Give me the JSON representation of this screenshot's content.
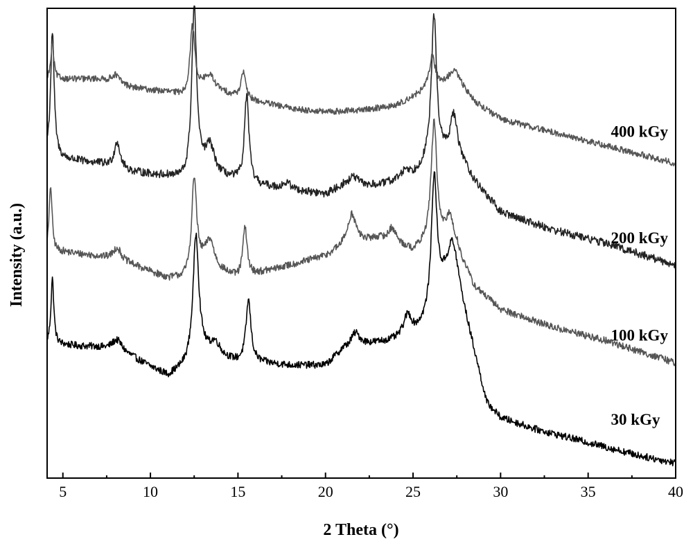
{
  "chart_data": {
    "type": "line",
    "title": "",
    "xlabel": "2 Theta (°)",
    "ylabel": "Intensity (a.u.)",
    "xlim": [
      4.1,
      40
    ],
    "ylim": [
      0,
      5.3
    ],
    "xticks": [
      5,
      10,
      15,
      20,
      25,
      30,
      35,
      40
    ],
    "xtick_labels": [
      "5",
      "10",
      "15",
      "20",
      "25",
      "30",
      "35",
      "40"
    ],
    "y_tick_labels_shown": false,
    "grid": false,
    "series": [
      {
        "name": "30 kGy",
        "color": "#000000",
        "offset": 0.05,
        "label_x": 36.3,
        "label_y": 0.6,
        "baseline": [
          [
            4.1,
            1.45
          ],
          [
            5,
            1.45
          ],
          [
            7,
            1.42
          ],
          [
            9,
            1.3
          ],
          [
            10,
            1.2
          ],
          [
            11,
            1.1
          ],
          [
            12,
            1.2
          ],
          [
            13,
            1.35
          ],
          [
            15,
            1.25
          ],
          [
            16,
            1.25
          ],
          [
            18,
            1.22
          ],
          [
            20,
            1.22
          ],
          [
            21,
            1.4
          ],
          [
            22,
            1.45
          ],
          [
            24,
            1.5
          ],
          [
            25,
            1.55
          ],
          [
            26,
            1.75
          ],
          [
            27.2,
            2.5
          ],
          [
            28,
            1.8
          ],
          [
            28.6,
            1.3
          ],
          [
            29.2,
            0.8
          ],
          [
            30,
            0.63
          ],
          [
            32,
            0.5
          ],
          [
            35,
            0.35
          ],
          [
            38,
            0.2
          ],
          [
            40,
            0.12
          ]
        ],
        "peaks": [
          [
            4.4,
            0.75,
            0.1
          ],
          [
            8.1,
            0.15,
            0.4
          ],
          [
            12.6,
            1.4,
            0.2
          ],
          [
            13.7,
            0.15,
            0.35
          ],
          [
            15.6,
            0.7,
            0.17
          ],
          [
            21.7,
            0.15,
            0.3
          ],
          [
            24.7,
            0.25,
            0.3
          ],
          [
            26.2,
            1.5,
            0.2
          ],
          [
            27.4,
            0.15,
            0.25
          ]
        ],
        "noise": 0.04
      },
      {
        "name": "100 kGy",
        "color": "#555555",
        "offset": 1.15,
        "label_x": 36.3,
        "label_y": 1.55,
        "baseline": [
          [
            4.1,
            1.4
          ],
          [
            5,
            1.4
          ],
          [
            7,
            1.35
          ],
          [
            9,
            1.25
          ],
          [
            11,
            1.1
          ],
          [
            12,
            1.1
          ],
          [
            13,
            1.25
          ],
          [
            15,
            1.1
          ],
          [
            16,
            1.15
          ],
          [
            18,
            1.25
          ],
          [
            20,
            1.35
          ],
          [
            21,
            1.45
          ],
          [
            23,
            1.55
          ],
          [
            24,
            1.5
          ],
          [
            25,
            1.4
          ],
          [
            26,
            1.5
          ],
          [
            27.5,
            1.4
          ],
          [
            28.5,
            1.0
          ],
          [
            30,
            0.75
          ],
          [
            33,
            0.55
          ],
          [
            36,
            0.4
          ],
          [
            40,
            0.15
          ]
        ],
        "peaks": [
          [
            4.3,
            0.75,
            0.1
          ],
          [
            8.1,
            0.15,
            0.3
          ],
          [
            12.5,
            1.05,
            0.17
          ],
          [
            13.4,
            0.3,
            0.3
          ],
          [
            15.4,
            0.55,
            0.15
          ],
          [
            21.5,
            0.35,
            0.3
          ],
          [
            23.8,
            0.15,
            0.25
          ],
          [
            26.2,
            1.35,
            0.2
          ],
          [
            27.1,
            0.35,
            0.3
          ]
        ],
        "noise": 0.04
      },
      {
        "name": "200 kGy",
        "color": "#222222",
        "offset": 2.4,
        "label_x": 36.3,
        "label_y": 2.65,
        "baseline": [
          [
            4.1,
            1.25
          ],
          [
            5,
            1.2
          ],
          [
            7,
            1.15
          ],
          [
            9,
            1.05
          ],
          [
            11,
            1.0
          ],
          [
            12,
            0.95
          ],
          [
            13,
            1.05
          ],
          [
            15,
            0.95
          ],
          [
            16,
            0.9
          ],
          [
            18,
            0.85
          ],
          [
            20,
            0.8
          ],
          [
            21,
            0.9
          ],
          [
            23,
            0.9
          ],
          [
            25,
            1.0
          ],
          [
            26,
            1.2
          ],
          [
            27.5,
            1.3
          ],
          [
            28.5,
            0.95
          ],
          [
            30,
            0.6
          ],
          [
            33,
            0.4
          ],
          [
            36,
            0.25
          ],
          [
            40,
            0.0
          ]
        ],
        "peaks": [
          [
            4.4,
            1.4,
            0.12
          ],
          [
            8.1,
            0.3,
            0.2
          ],
          [
            12.5,
            1.9,
            0.17
          ],
          [
            13.4,
            0.3,
            0.3
          ],
          [
            15.5,
            1.0,
            0.15
          ],
          [
            17.8,
            0.07,
            0.3
          ],
          [
            21.6,
            0.1,
            0.3
          ],
          [
            24.6,
            0.1,
            0.3
          ],
          [
            26.2,
            1.6,
            0.18
          ],
          [
            27.3,
            0.4,
            0.2
          ]
        ],
        "noise": 0.045
      },
      {
        "name": "400 kGy",
        "color": "#555555",
        "offset": 3.55,
        "label_x": 36.3,
        "label_y": 3.85,
        "baseline": [
          [
            4.1,
            0.95
          ],
          [
            5,
            0.95
          ],
          [
            7,
            0.95
          ],
          [
            9,
            0.85
          ],
          [
            11,
            0.8
          ],
          [
            12,
            0.75
          ],
          [
            13,
            0.85
          ],
          [
            15,
            0.75
          ],
          [
            16,
            0.7
          ],
          [
            18,
            0.62
          ],
          [
            20,
            0.58
          ],
          [
            22,
            0.6
          ],
          [
            24,
            0.65
          ],
          [
            25,
            0.75
          ],
          [
            26,
            0.85
          ],
          [
            27.5,
            0.95
          ],
          [
            28.5,
            0.7
          ],
          [
            30,
            0.5
          ],
          [
            33,
            0.35
          ],
          [
            36,
            0.2
          ],
          [
            40,
            0.0
          ]
        ],
        "peaks": [
          [
            4.4,
            0.4,
            0.1
          ],
          [
            8.0,
            0.1,
            0.3
          ],
          [
            12.4,
            0.75,
            0.17
          ],
          [
            13.4,
            0.15,
            0.35
          ],
          [
            15.3,
            0.3,
            0.15
          ],
          [
            26.1,
            0.35,
            0.2
          ],
          [
            27.3,
            0.1,
            0.3
          ]
        ],
        "noise": 0.035
      }
    ]
  }
}
